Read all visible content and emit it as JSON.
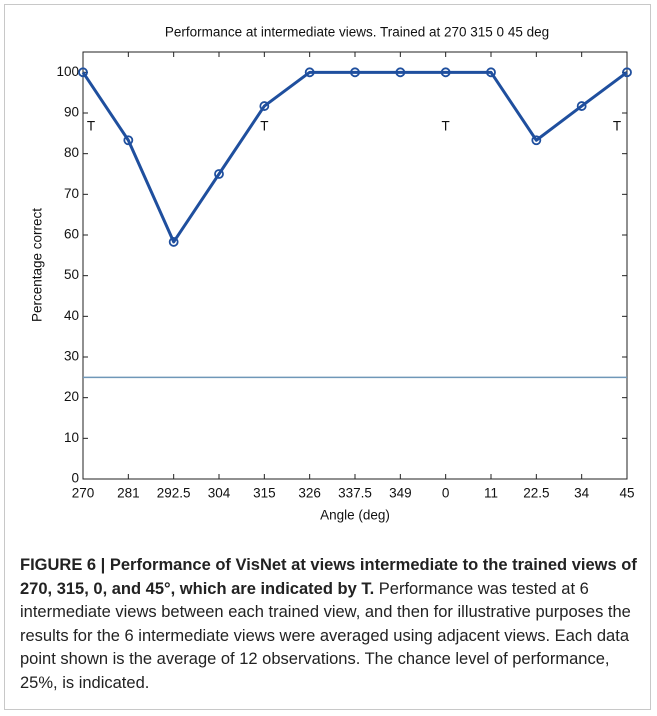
{
  "chart_data": {
    "type": "line",
    "title": "Performance at intermediate views. Trained at 270 315 0 45 deg",
    "x_label": "Angle (deg)",
    "y_label": "Percentage correct",
    "categories": [
      "270",
      "281",
      "292.5",
      "304",
      "315",
      "326",
      "337.5",
      "349",
      "0",
      "11",
      "22.5",
      "34",
      "45"
    ],
    "series": [
      {
        "name": "Performance",
        "color": "#1f4f9e",
        "values": [
          100,
          83.3,
          58.3,
          75,
          91.7,
          100,
          100,
          100,
          100,
          100,
          83.3,
          91.7,
          100
        ]
      }
    ],
    "ylim": [
      0,
      105
    ],
    "yticks": [
      0,
      10,
      20,
      30,
      40,
      50,
      60,
      70,
      80,
      90,
      100
    ],
    "hlines": [
      {
        "value": 25,
        "color": "#6f97b8"
      }
    ],
    "annotations": [
      {
        "text": "T",
        "category": "270"
      },
      {
        "text": "T",
        "category": "315"
      },
      {
        "text": "T",
        "category": "0"
      },
      {
        "text": "T",
        "category": "45"
      }
    ],
    "grid": false
  },
  "caption": {
    "heading": "FIGURE 6 | Performance of VisNet at views intermediate to the trained views of 270, 315, 0, and 45°, which are indicated by T.",
    "text": "Performance was tested at 6 intermediate views between each trained view, and then for illustrative purposes the results for the 6 intermediate views were averaged using adjacent views. Each data point shown is the average of 12 observations. The chance level of performance, 25%, is indicated."
  }
}
